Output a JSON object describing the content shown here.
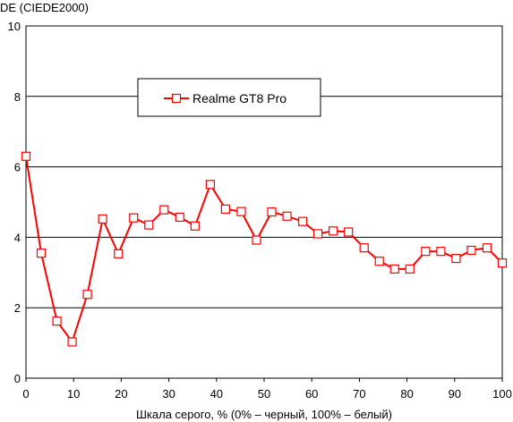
{
  "chart_data": {
    "type": "line",
    "ylabel": "DE (CIEDE2000)",
    "xlabel": "Шкала серого, % (0% – черный, 100% – белый)",
    "xlim": [
      0,
      100
    ],
    "ylim": [
      0,
      10
    ],
    "xticks": [
      "0",
      "10",
      "20",
      "30",
      "40",
      "50",
      "60",
      "70",
      "80",
      "90",
      "100"
    ],
    "yticks": [
      "0",
      "2",
      "4",
      "6",
      "8",
      "10"
    ],
    "grid": "horizontal",
    "legend_position": "top-left inside plot",
    "series": [
      {
        "name": "Realme GT8 Pro",
        "color": "#ff0000",
        "marker": "hollow-square",
        "x": [
          0,
          3.2,
          6.5,
          9.7,
          12.9,
          16.1,
          19.4,
          22.6,
          25.8,
          29.0,
          32.3,
          35.5,
          38.7,
          41.9,
          45.2,
          48.4,
          51.6,
          54.8,
          58.1,
          61.3,
          64.5,
          67.7,
          71.0,
          74.2,
          77.4,
          80.6,
          83.9,
          87.1,
          90.3,
          93.5,
          96.8,
          100
        ],
        "y": [
          6.3,
          3.55,
          1.62,
          1.03,
          2.38,
          4.52,
          3.53,
          4.55,
          4.35,
          4.78,
          4.57,
          4.32,
          5.5,
          4.8,
          4.73,
          3.92,
          4.72,
          4.6,
          4.45,
          4.1,
          4.18,
          4.15,
          3.7,
          3.32,
          3.1,
          3.1,
          3.6,
          3.6,
          3.4,
          3.63,
          3.7,
          3.27
        ]
      }
    ]
  }
}
